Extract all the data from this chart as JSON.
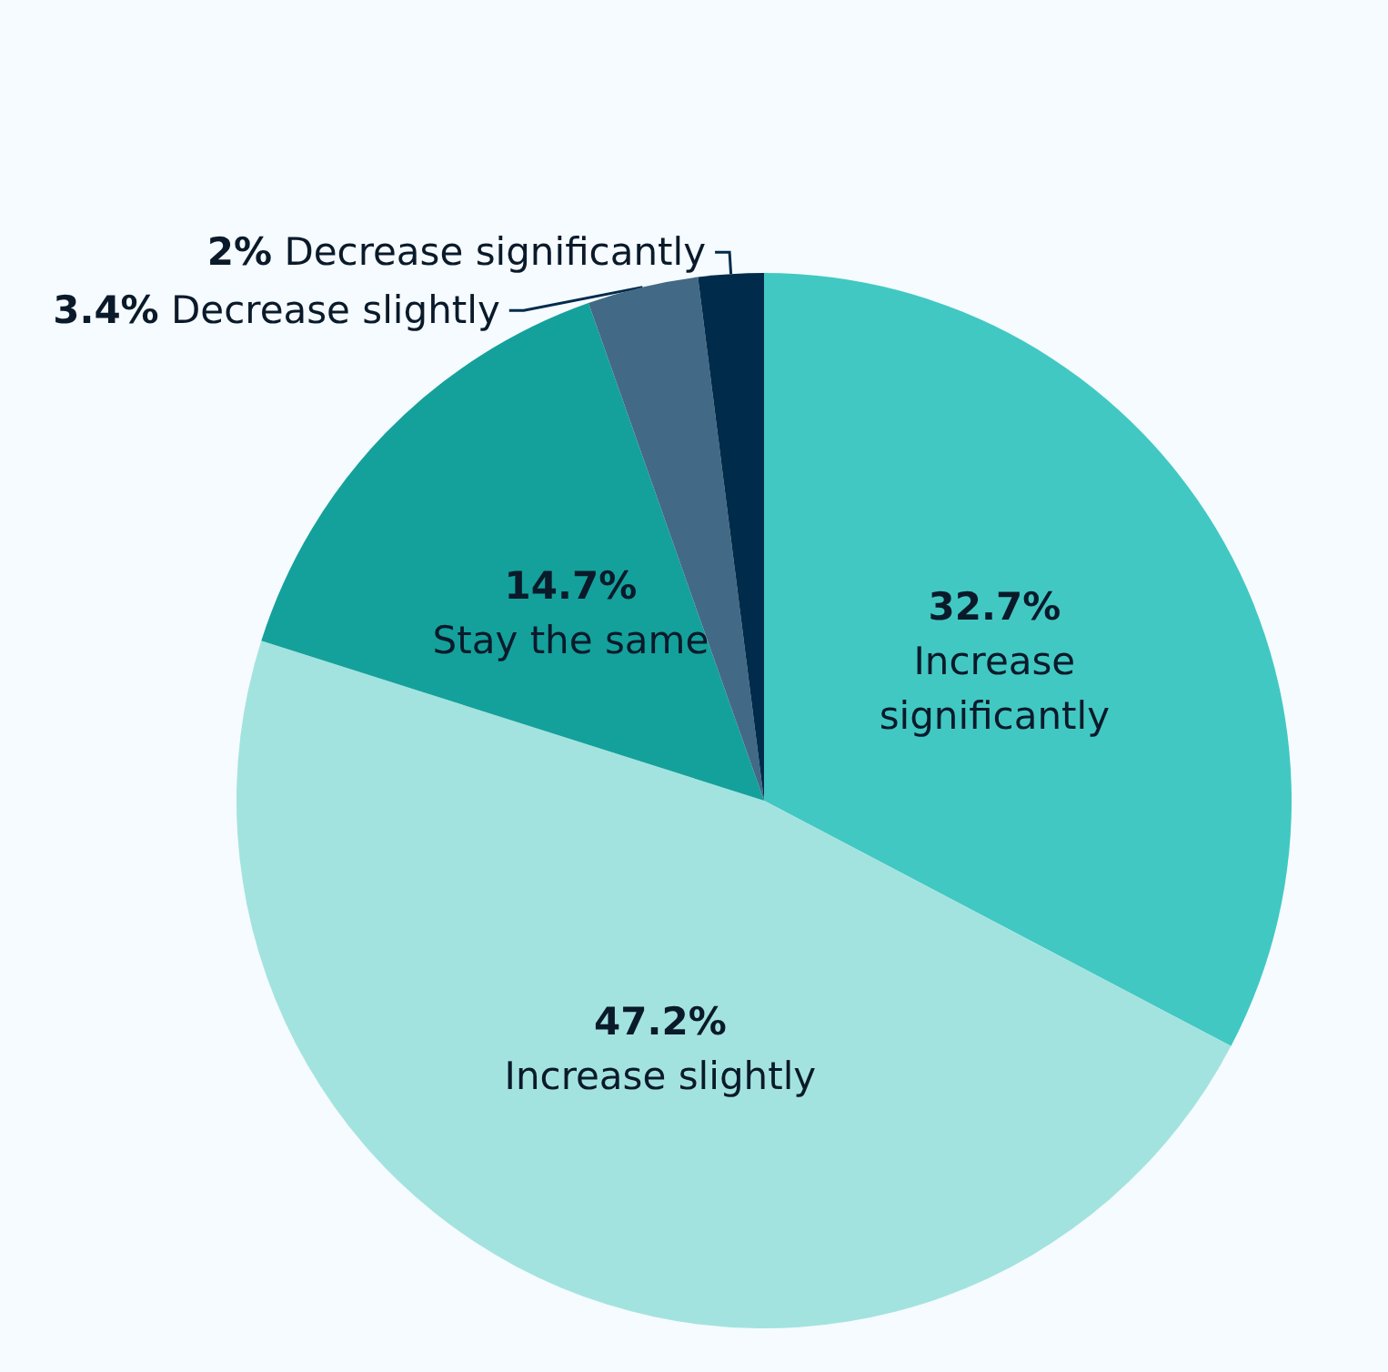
{
  "chart_data": {
    "type": "pie",
    "categories": [
      "Increase significantly",
      "Increase slightly",
      "Stay the same",
      "Decrease slightly",
      "Decrease significantly"
    ],
    "values": [
      32.7,
      47.2,
      14.7,
      3.4,
      2
    ],
    "value_labels": [
      "32.7%",
      "47.2%",
      "14.7%",
      "3.4%",
      "2%"
    ],
    "colors": [
      "#42c8c2",
      "#a3e3df",
      "#14a19b",
      "#426985",
      "#002b4b"
    ],
    "legend": false
  }
}
